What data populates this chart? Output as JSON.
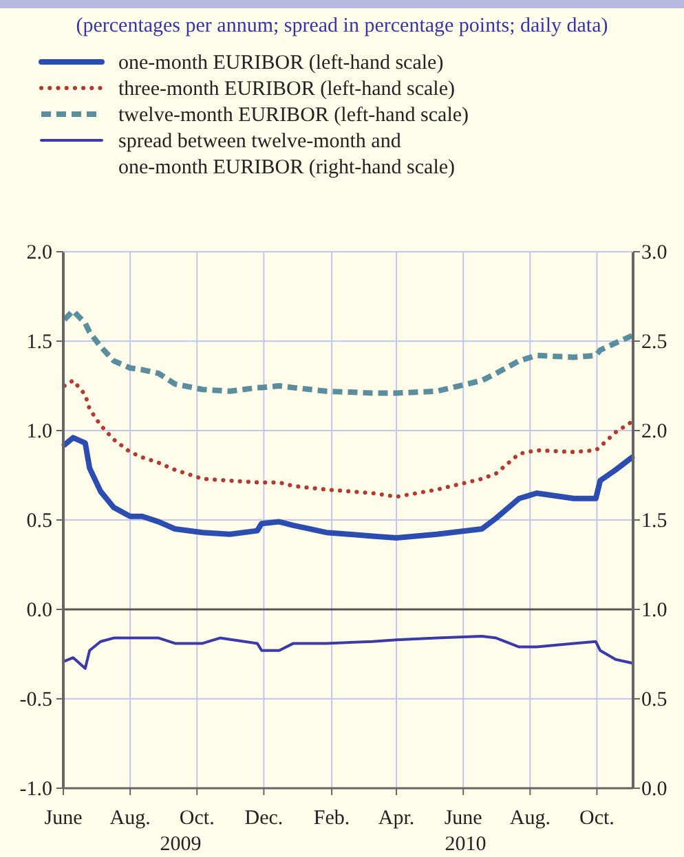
{
  "chart_data": {
    "type": "line",
    "title": "(percentages per annum; spread in percentage points; daily data)",
    "x": [
      "2009-06-02",
      "2009-06-10",
      "2009-06-21",
      "2009-06-25",
      "2009-07-05",
      "2009-07-17",
      "2009-08-01",
      "2009-08-12",
      "2009-08-27",
      "2009-09-11",
      "2009-10-06",
      "2009-10-31",
      "2009-11-25",
      "2009-11-29",
      "2009-12-15",
      "2009-12-28",
      "2010-01-27",
      "2010-03-10",
      "2010-04-01",
      "2010-05-08",
      "2010-06-18",
      "2010-07-01",
      "2010-07-22",
      "2010-08-07",
      "2010-09-10",
      "2010-09-30",
      "2010-10-04",
      "2010-10-18",
      "2010-11-02"
    ],
    "series": [
      {
        "name": "one-month EURIBOR (left-hand scale)",
        "color": "#2c4db0",
        "line_style": "solid",
        "values": [
          0.92,
          0.96,
          0.93,
          0.79,
          0.66,
          0.57,
          0.52,
          0.52,
          0.49,
          0.45,
          0.43,
          0.42,
          0.44,
          0.48,
          0.49,
          0.47,
          0.43,
          0.41,
          0.4,
          0.42,
          0.45,
          0.51,
          0.62,
          0.65,
          0.62,
          0.62,
          0.72,
          0.78,
          0.85
        ]
      },
      {
        "name": "three-month EURIBOR (left-hand scale)",
        "color": "#b23a2e",
        "line_style": "dotted",
        "values": [
          1.25,
          1.28,
          1.2,
          1.12,
          1.03,
          0.95,
          0.88,
          0.85,
          0.82,
          0.78,
          0.73,
          0.72,
          0.71,
          0.71,
          0.71,
          0.69,
          0.67,
          0.65,
          0.63,
          0.67,
          0.73,
          0.76,
          0.87,
          0.89,
          0.88,
          0.89,
          0.91,
          0.99,
          1.05
        ]
      },
      {
        "name": "twelve-month EURIBOR (left-hand scale)",
        "color": "#5a8e9e",
        "line_style": "dashed",
        "values": [
          1.62,
          1.67,
          1.6,
          1.55,
          1.47,
          1.39,
          1.35,
          1.34,
          1.32,
          1.26,
          1.23,
          1.22,
          1.24,
          1.24,
          1.25,
          1.24,
          1.22,
          1.21,
          1.21,
          1.22,
          1.28,
          1.32,
          1.39,
          1.42,
          1.41,
          1.42,
          1.45,
          1.49,
          1.53
        ]
      },
      {
        "name": "spread between twelve-month and one-month EURIBOR (right-hand scale)",
        "color": "#3a3aa8",
        "line_style": "solid",
        "axis": "y2",
        "x": [
          "2009-06-02",
          "2009-06-10",
          "2009-06-21",
          "2009-06-25",
          "2009-07-05",
          "2009-07-17",
          "2009-08-01",
          "2009-08-12",
          "2009-08-27",
          "2009-09-11",
          "2009-10-06",
          "2009-10-22",
          "2009-11-25",
          "2009-11-29",
          "2009-12-15",
          "2009-12-28",
          "2010-01-27",
          "2010-03-10",
          "2010-04-01",
          "2010-05-08",
          "2010-06-18",
          "2010-07-01",
          "2010-07-22",
          "2010-08-07",
          "2010-09-10",
          "2010-09-30",
          "2010-10-04",
          "2010-10-18",
          "2010-11-02"
        ],
        "values": [
          0.71,
          0.73,
          0.67,
          0.77,
          0.82,
          0.84,
          0.84,
          0.84,
          0.84,
          0.81,
          0.81,
          0.84,
          0.81,
          0.77,
          0.77,
          0.81,
          0.81,
          0.82,
          0.83,
          0.84,
          0.85,
          0.84,
          0.79,
          0.79,
          0.81,
          0.82,
          0.77,
          0.72,
          0.7
        ]
      }
    ],
    "xlim": [
      "2009-06-01",
      "2010-11-03"
    ],
    "xticks": [
      {
        "value": "2009-06-01",
        "label": "June"
      },
      {
        "value": "2009-08-01",
        "label": "Aug."
      },
      {
        "value": "2009-10-01",
        "label": "Oct."
      },
      {
        "value": "2009-12-01",
        "label": "Dec."
      },
      {
        "value": "2010-02-01",
        "label": "Feb."
      },
      {
        "value": "2010-04-01",
        "label": "Apr."
      },
      {
        "value": "2010-06-01",
        "label": "June"
      },
      {
        "value": "2010-08-01",
        "label": "Aug."
      },
      {
        "value": "2010-10-01",
        "label": "Oct."
      }
    ],
    "ylim": [
      -1,
      2
    ],
    "yticks": [
      {
        "value": -1,
        "label": "-1.0"
      },
      {
        "value": -0.5,
        "label": "-0.5"
      },
      {
        "value": 0,
        "label": "0.0"
      },
      {
        "value": 0.5,
        "label": "0.5"
      },
      {
        "value": 1,
        "label": "1.0"
      },
      {
        "value": 1.5,
        "label": "1.5"
      },
      {
        "value": 2,
        "label": "2.0"
      }
    ],
    "y2lim": [
      0,
      3
    ],
    "y2ticks": [
      {
        "value": 0,
        "label": "0.0"
      },
      {
        "value": 0.5,
        "label": "0.5"
      },
      {
        "value": 1,
        "label": "1.0"
      },
      {
        "value": 1.5,
        "label": "1.5"
      },
      {
        "value": 2,
        "label": "2.0"
      },
      {
        "value": 2.5,
        "label": "2.5"
      },
      {
        "value": 3,
        "label": "3.0"
      }
    ],
    "ref_lines": [
      {
        "axis": "y",
        "value": 0,
        "color": "#555555"
      }
    ],
    "annotations": [
      "2009",
      "2010"
    ],
    "grid": true,
    "legend": "top"
  }
}
